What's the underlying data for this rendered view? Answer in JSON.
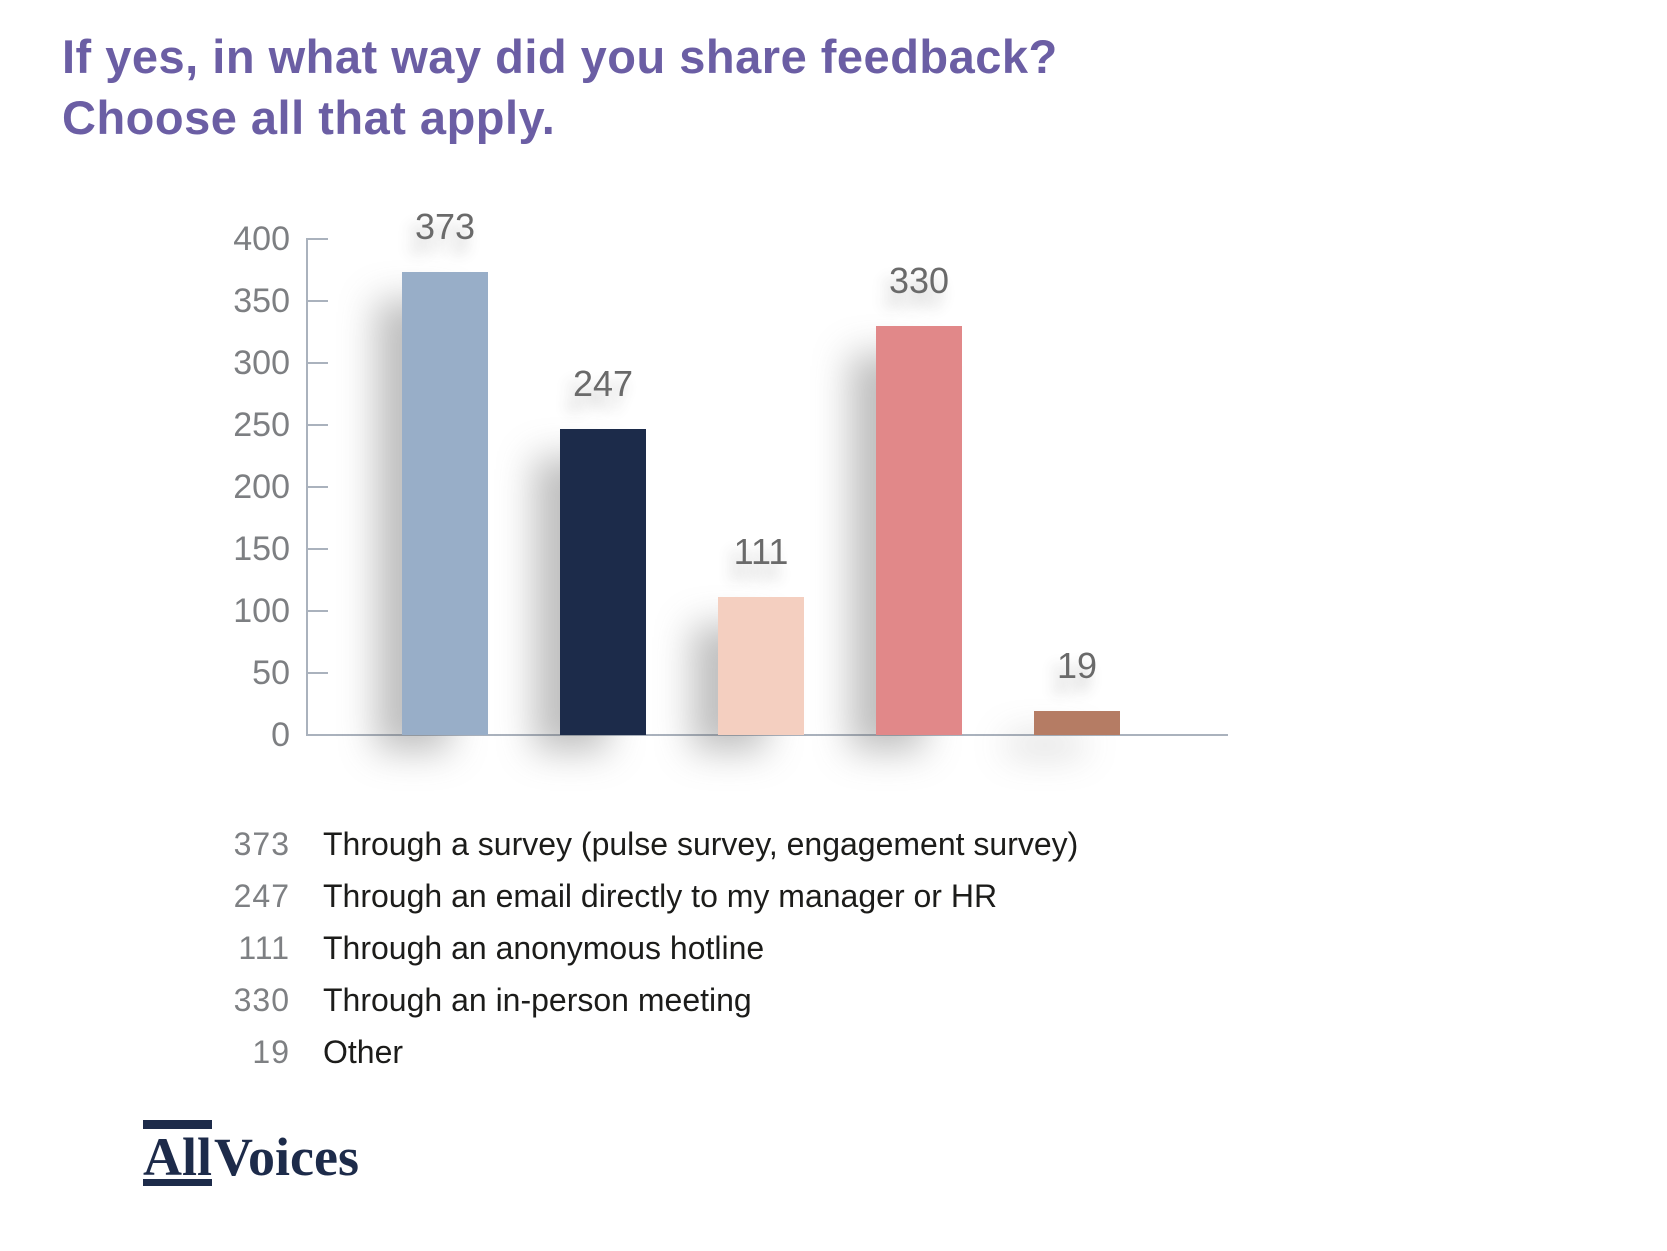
{
  "title": {
    "line1": "If yes, in what way did you share feedback?",
    "line2": "Choose all that apply.",
    "color": "#6B5EA4"
  },
  "chart_data": {
    "type": "bar",
    "categories": [
      "Through a survey (pulse survey, engagement survey)",
      "Through an email directly to my manager or HR",
      "Through an anonymous hotline",
      "Through an in-person meeting",
      "Other"
    ],
    "values": [
      373,
      247,
      111,
      330,
      19
    ],
    "bar_colors": [
      "#98AEC8",
      "#1C2B4A",
      "#F4CFC0",
      "#E18889",
      "#B57C64"
    ],
    "title": "If yes, in what way did you share feedback? Choose all that apply.",
    "xlabel": "",
    "ylabel": "",
    "ylim": [
      0,
      400
    ],
    "yticks": [
      400,
      350,
      300,
      250,
      200,
      150,
      100,
      50,
      0
    ],
    "grid": false,
    "x_category_labels_shown": false,
    "value_labels_shown": true,
    "axis_color": "#AAB2BD",
    "tick_label_color": "#7D7F82",
    "value_label_color": "#6A6A6A",
    "legend_position": "below-chart-as-list"
  },
  "legend": {
    "items": [
      {
        "value": "373",
        "label": "Through a survey (pulse survey, engagement survey)"
      },
      {
        "value": "247",
        "label": "Through an email directly to my manager or HR"
      },
      {
        "value": "111",
        "label": "Through an anonymous hotline"
      },
      {
        "value": "330",
        "label": "Through an in-person meeting"
      },
      {
        "value": "19",
        "label": "Other"
      }
    ],
    "value_color": "#7E8083",
    "label_color": "#1C1C1A"
  },
  "logo": {
    "part1": "All",
    "part2": "Voices",
    "color": "#1D2B4A"
  }
}
